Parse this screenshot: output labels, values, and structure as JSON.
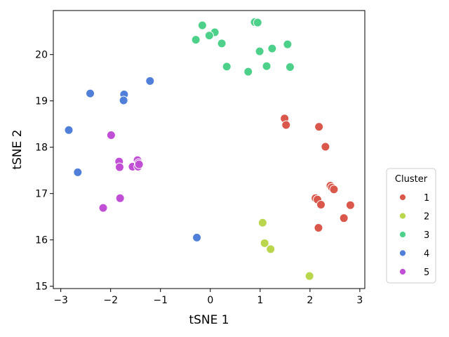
{
  "chart_data": {
    "type": "scatter",
    "xlabel": "tSNE 1",
    "ylabel": "tSNE 2",
    "xlim": [
      -3.15,
      3.1
    ],
    "ylim": [
      14.95,
      20.95
    ],
    "xticks": [
      "−3",
      "−2",
      "−1",
      "0",
      "1",
      "2",
      "3"
    ],
    "yticks": [
      "15",
      "16",
      "17",
      "18",
      "19",
      "20"
    ],
    "grid": false,
    "legend": {
      "title": "Cluster",
      "placement": "right"
    },
    "series": [
      {
        "name": "1",
        "color": "#d9574b",
        "points": [
          [
            1.49,
            18.62
          ],
          [
            1.52,
            18.48
          ],
          [
            2.18,
            18.44
          ],
          [
            2.31,
            18.01
          ],
          [
            2.41,
            17.17
          ],
          [
            2.44,
            17.13
          ],
          [
            2.48,
            17.09
          ],
          [
            2.81,
            16.75
          ],
          [
            2.11,
            16.9
          ],
          [
            2.15,
            16.87
          ],
          [
            2.22,
            16.76
          ],
          [
            2.68,
            16.47
          ],
          [
            2.17,
            16.26
          ]
        ]
      },
      {
        "name": "2",
        "color": "#b9d64c",
        "points": [
          [
            1.05,
            16.37
          ],
          [
            1.09,
            15.93
          ],
          [
            1.21,
            15.8
          ],
          [
            1.99,
            15.22
          ]
        ]
      },
      {
        "name": "3",
        "color": "#4dd18a",
        "points": [
          [
            -0.16,
            20.63
          ],
          [
            0.09,
            20.48
          ],
          [
            -0.02,
            20.41
          ],
          [
            -0.29,
            20.32
          ],
          [
            0.23,
            20.24
          ],
          [
            0.33,
            19.74
          ],
          [
            0.76,
            19.63
          ],
          [
            0.89,
            20.7
          ],
          [
            0.95,
            20.69
          ],
          [
            0.99,
            20.07
          ],
          [
            1.13,
            19.75
          ],
          [
            1.24,
            20.13
          ],
          [
            1.55,
            20.22
          ],
          [
            1.6,
            19.73
          ]
        ]
      },
      {
        "name": "4",
        "color": "#4f7fd8",
        "points": [
          [
            -2.41,
            19.16
          ],
          [
            -1.73,
            19.14
          ],
          [
            -1.74,
            19.01
          ],
          [
            -1.21,
            19.43
          ],
          [
            -2.84,
            18.37
          ],
          [
            -2.66,
            17.46
          ],
          [
            -0.27,
            16.05
          ]
        ]
      },
      {
        "name": "5",
        "color": "#c04fd6",
        "points": [
          [
            -1.99,
            18.26
          ],
          [
            -1.83,
            17.69
          ],
          [
            -1.82,
            17.57
          ],
          [
            -1.56,
            17.58
          ],
          [
            -1.46,
            17.72
          ],
          [
            -1.44,
            17.66
          ],
          [
            -1.45,
            17.58
          ],
          [
            -1.43,
            17.63
          ],
          [
            -2.15,
            16.69
          ],
          [
            -1.81,
            16.9
          ]
        ]
      }
    ]
  }
}
